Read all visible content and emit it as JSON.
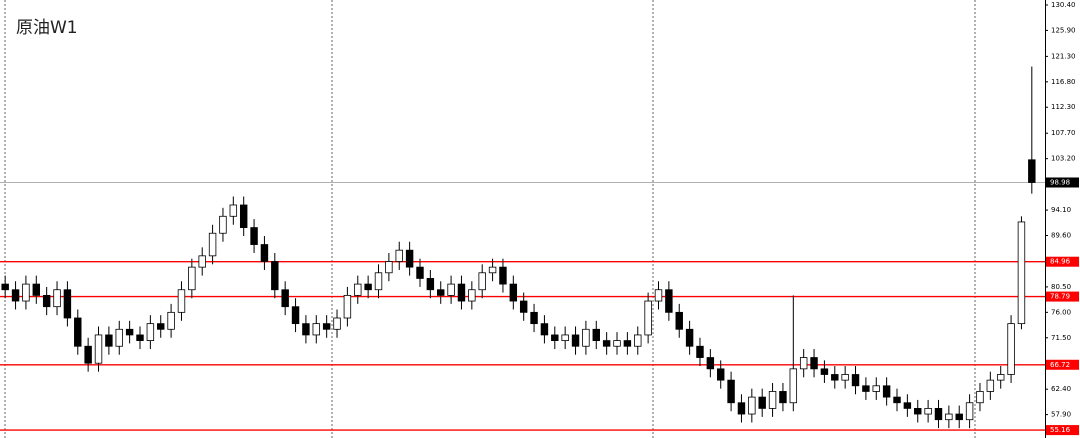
{
  "chart_data": {
    "type": "candlestick",
    "title": "原油W1",
    "ylim": [
      53.76,
      131.28
    ],
    "yticks": [
      {
        "value": 130.4,
        "label": "130.40"
      },
      {
        "value": 125.9,
        "label": "125.90"
      },
      {
        "value": 121.3,
        "label": "121.30"
      },
      {
        "value": 116.8,
        "label": "116.80"
      },
      {
        "value": 112.3,
        "label": "112.30"
      },
      {
        "value": 107.7,
        "label": "107.70"
      },
      {
        "value": 103.2,
        "label": "103.20"
      },
      {
        "value": 94.1,
        "label": "94.10"
      },
      {
        "value": 89.6,
        "label": "89.60"
      },
      {
        "value": 80.5,
        "label": "80.50"
      },
      {
        "value": 76.0,
        "label": "76.00"
      },
      {
        "value": 71.5,
        "label": "71.50"
      },
      {
        "value": 62.4,
        "label": "62.40"
      },
      {
        "value": 57.9,
        "label": "57.90"
      }
    ],
    "levels": [
      84.96,
      78.79,
      66.72,
      55.16
    ],
    "level_color": "#ff0000",
    "current_price": 98.98,
    "up_color": "#ffffff",
    "down_color": "#000000",
    "open": [
      81,
      80,
      78,
      81,
      79,
      77,
      80,
      75,
      70,
      67,
      72,
      70,
      73,
      72,
      71,
      74,
      73,
      76,
      80,
      84,
      86,
      90,
      93,
      95,
      91,
      88,
      85,
      80,
      77,
      74,
      72,
      74,
      73,
      75,
      79,
      81,
      80,
      83,
      85,
      87,
      84,
      82,
      80,
      79,
      81,
      78,
      80,
      83,
      84,
      81,
      78,
      76,
      74,
      72,
      71,
      72,
      70,
      73,
      71,
      70,
      71,
      70,
      72,
      78,
      80,
      76,
      73,
      70,
      68,
      66,
      64,
      60,
      58,
      61,
      59,
      62,
      60,
      66,
      68,
      66,
      65,
      64,
      65,
      63,
      62,
      63,
      61,
      60,
      59,
      58,
      59,
      57,
      58,
      57,
      60,
      62,
      64,
      65,
      74,
      103
    ],
    "high": [
      82.5,
      81.5,
      82.5,
      82.5,
      80.5,
      81.5,
      81.5,
      76.5,
      71.5,
      73.5,
      73.5,
      74.5,
      74.5,
      73.5,
      75.5,
      75.5,
      77.5,
      81.5,
      85.5,
      87.5,
      91.5,
      94.5,
      96.5,
      96.5,
      92.5,
      89.5,
      86.5,
      81.5,
      78.5,
      75.5,
      75.5,
      75.5,
      76.5,
      80.5,
      82.5,
      82.5,
      84.5,
      86.5,
      88.5,
      88.5,
      85.5,
      83.5,
      81.5,
      82.5,
      82.5,
      81.5,
      84.5,
      85.5,
      85.5,
      82.5,
      79.5,
      77.5,
      75.5,
      73.5,
      73.5,
      73.5,
      74.5,
      74.5,
      72.5,
      72.5,
      72.5,
      73.5,
      79.5,
      81.5,
      81.5,
      77.5,
      74.5,
      71.5,
      69.5,
      67.5,
      65.5,
      61.5,
      62.5,
      62.5,
      63.5,
      63.5,
      79,
      69.5,
      69.5,
      67.5,
      66.5,
      66.5,
      66.5,
      64.5,
      64.5,
      64.5,
      62.5,
      61.5,
      60.5,
      60.5,
      60.5,
      59.5,
      59.5,
      61.5,
      63.5,
      65.5,
      66.5,
      75.5,
      93,
      119.5
    ],
    "low": [
      78.5,
      76.5,
      76.5,
      77.5,
      75.5,
      75.5,
      73.5,
      68.5,
      65.5,
      65.5,
      68.5,
      68.5,
      70.5,
      69.5,
      69.5,
      71.5,
      71.5,
      74.5,
      78.5,
      82.5,
      84.5,
      88.5,
      91.5,
      89.5,
      86.5,
      83.5,
      78.5,
      75.5,
      72.5,
      70.5,
      70.5,
      71.5,
      71.5,
      73.5,
      77.5,
      78.5,
      78.5,
      81.5,
      83.5,
      82.5,
      80.5,
      78.5,
      77.5,
      77.5,
      76.5,
      76.5,
      78.5,
      81.5,
      79.5,
      76.5,
      74.5,
      72.5,
      70.5,
      69.5,
      69.5,
      68.5,
      68.5,
      69.5,
      68.5,
      68.5,
      68.5,
      68.5,
      70.5,
      76.5,
      74.5,
      71.5,
      68.5,
      66.5,
      64.5,
      62.5,
      58.5,
      56.5,
      56.5,
      57.5,
      57.5,
      58.5,
      58.5,
      64.5,
      64.5,
      63.5,
      62.5,
      62.5,
      61.5,
      60.5,
      60.5,
      59.5,
      58.5,
      57.5,
      56.5,
      56.5,
      55.5,
      55.5,
      55.5,
      55.5,
      58.5,
      60.5,
      62.5,
      63.5,
      73,
      97
    ],
    "close": [
      80,
      78,
      81,
      79,
      77,
      80,
      75,
      70,
      67,
      72,
      70,
      73,
      72,
      71,
      74,
      73,
      76,
      80,
      84,
      86,
      90,
      93,
      95,
      91,
      88,
      85,
      80,
      77,
      74,
      72,
      74,
      73,
      75,
      79,
      81,
      80,
      83,
      85,
      87,
      84,
      82,
      80,
      79,
      81,
      78,
      80,
      83,
      84,
      81,
      78,
      76,
      74,
      72,
      71,
      72,
      70,
      73,
      71,
      70,
      71,
      70,
      72,
      78,
      80,
      76,
      73,
      70,
      68,
      66,
      64,
      60,
      58,
      61,
      59,
      62,
      60,
      66,
      68,
      66,
      65,
      64,
      65,
      63,
      62,
      63,
      61,
      60,
      59,
      58,
      59,
      57,
      58,
      57,
      60,
      62,
      64,
      65,
      74,
      92,
      98.98
    ]
  }
}
